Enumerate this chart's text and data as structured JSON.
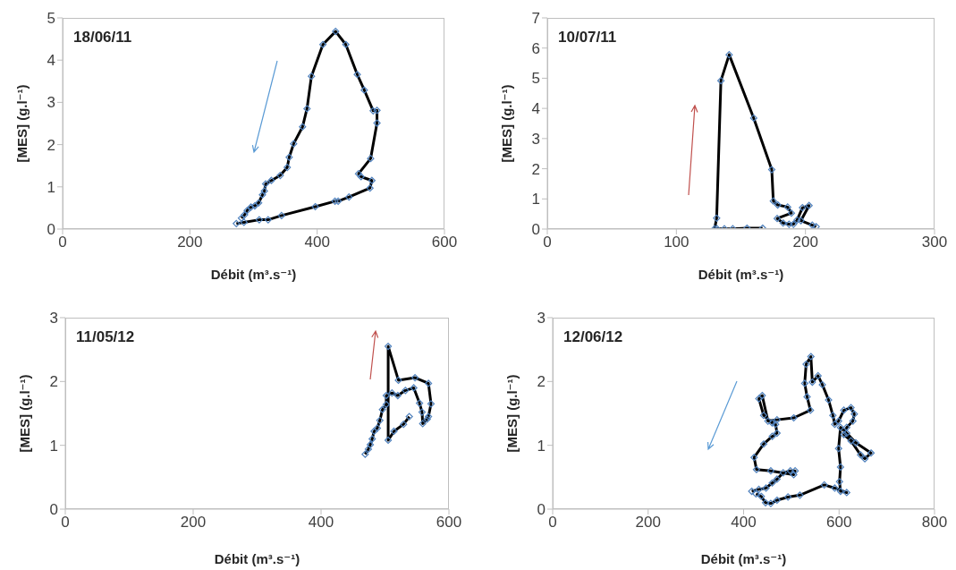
{
  "chart_data": [
    {
      "type": "line",
      "title": "18/06/11",
      "xlabel": "Débit (m³.s⁻¹)",
      "ylabel": "[MES] (g.l⁻¹)",
      "color": "#000000",
      "marker": "diamond",
      "xlim": [
        0,
        600
      ],
      "xticks": [
        0,
        200,
        400,
        600
      ],
      "ylim": [
        0,
        5
      ],
      "yticks": [
        0,
        1,
        2,
        3,
        4,
        5
      ],
      "x": [
        273,
        285,
        309,
        323,
        344,
        397,
        428,
        433,
        450,
        483,
        486,
        469,
        465,
        484,
        494,
        494,
        488,
        474,
        463,
        445,
        429,
        409,
        391,
        384,
        377,
        363,
        356,
        353,
        342,
        328,
        319,
        317,
        314,
        308,
        302,
        296,
        290,
        286,
        281
      ],
      "values": [
        0.13,
        0.16,
        0.22,
        0.22,
        0.32,
        0.53,
        0.66,
        0.66,
        0.76,
        0.97,
        1.15,
        1.24,
        1.31,
        1.67,
        2.51,
        2.81,
        2.8,
        3.29,
        3.66,
        4.37,
        4.68,
        4.37,
        3.62,
        2.85,
        2.42,
        2.02,
        1.7,
        1.46,
        1.27,
        1.15,
        1.07,
        0.9,
        0.81,
        0.62,
        0.55,
        0.52,
        0.44,
        0.34,
        0.26
      ]
    },
    {
      "type": "line",
      "title": "10/07/11",
      "xlabel": "Débit (m³.s⁻¹)",
      "ylabel": "[MES] (g.l⁻¹)",
      "color": "#000000",
      "marker": "diamond",
      "xlim": [
        0,
        300
      ],
      "xticks": [
        0,
        100,
        200,
        300
      ],
      "ylim": [
        0,
        7
      ],
      "yticks": [
        0,
        1,
        2,
        3,
        4,
        5,
        6,
        7
      ],
      "x": [
        166.8,
        154.7,
        143.7,
        137.2,
        131.5,
        129.6,
        131.2,
        134.5,
        140.9,
        159.9,
        173.9,
        175.1,
        178.5,
        186.2,
        189.1,
        178.1,
        182.7,
        187.3,
        190.7,
        193.5,
        197.7,
        202.8,
        196.5,
        205.3,
        208.3
      ],
      "values": [
        0.03,
        0.03,
        0.01,
        0.01,
        0.01,
        0.01,
        0.36,
        4.92,
        5.78,
        3.68,
        1.97,
        0.93,
        0.8,
        0.73,
        0.53,
        0.35,
        0.2,
        0.16,
        0.16,
        0.3,
        0.71,
        0.78,
        0.28,
        0.13,
        0.08
      ]
    },
    {
      "type": "line",
      "title": "11/05/12",
      "xlabel": "Débit (m³.s⁻¹)",
      "ylabel": "[MES] (g.l⁻¹)",
      "color": "#000000",
      "marker": "diamond",
      "xlim": [
        0,
        600
      ],
      "xticks": [
        0,
        200,
        400,
        600
      ],
      "ylim": [
        0,
        3
      ],
      "yticks": [
        0,
        1,
        2,
        3
      ],
      "x": [
        469,
        474,
        477,
        480,
        483,
        488,
        492,
        496,
        502,
        502,
        511,
        520,
        532,
        545,
        554,
        558,
        559,
        566,
        568,
        572,
        568,
        547,
        521,
        505,
        505,
        514,
        529,
        538
      ],
      "values": [
        0.86,
        0.94,
        1.01,
        1.1,
        1.22,
        1.27,
        1.39,
        1.56,
        1.64,
        1.78,
        1.82,
        1.78,
        1.86,
        1.9,
        1.66,
        1.52,
        1.34,
        1.41,
        1.45,
        1.65,
        1.97,
        2.06,
        2.02,
        2.55,
        1.08,
        1.22,
        1.33,
        1.45
      ]
    },
    {
      "type": "line",
      "title": "12/06/12",
      "xlabel": "Débit (m³.s⁻¹)",
      "ylabel": "[MES] (g.l⁻¹)",
      "color": "#000000",
      "marker": "diamond",
      "xlim": [
        0,
        800
      ],
      "xticks": [
        0,
        200,
        400,
        600,
        800
      ],
      "ylim": [
        0,
        3
      ],
      "yticks": [
        0,
        1,
        2,
        3
      ],
      "x": [
        417,
        432,
        447,
        460,
        470,
        483,
        498,
        508,
        505,
        457,
        427,
        422,
        442,
        460,
        470,
        467,
        460,
        442,
        432,
        439,
        451,
        470,
        505,
        540,
        533,
        528,
        531,
        541,
        544,
        556,
        565,
        578,
        587,
        591,
        599,
        610,
        625,
        632,
        629,
        616,
        610,
        625,
        645,
        654,
        667,
        635,
        616,
        603,
        599,
        603,
        601,
        603,
        616,
        591,
        569,
        518,
        493,
        470,
        457,
        446,
        437,
        426
      ],
      "values": [
        0.28,
        0.31,
        0.33,
        0.41,
        0.47,
        0.57,
        0.6,
        0.6,
        0.54,
        0.6,
        0.62,
        0.81,
        1.02,
        1.14,
        1.19,
        1.33,
        1.35,
        1.47,
        1.73,
        1.78,
        1.38,
        1.4,
        1.43,
        1.55,
        1.76,
        1.97,
        2.27,
        2.39,
        1.99,
        2.09,
        1.95,
        1.71,
        1.47,
        1.33,
        1.38,
        1.55,
        1.59,
        1.49,
        1.38,
        1.28,
        1.17,
        1.07,
        0.85,
        0.79,
        0.88,
        1.04,
        1.19,
        1.28,
        0.95,
        0.66,
        0.43,
        0.28,
        0.26,
        0.33,
        0.38,
        0.22,
        0.19,
        0.14,
        0.09,
        0.1,
        0.2,
        0.24
      ]
    }
  ]
}
